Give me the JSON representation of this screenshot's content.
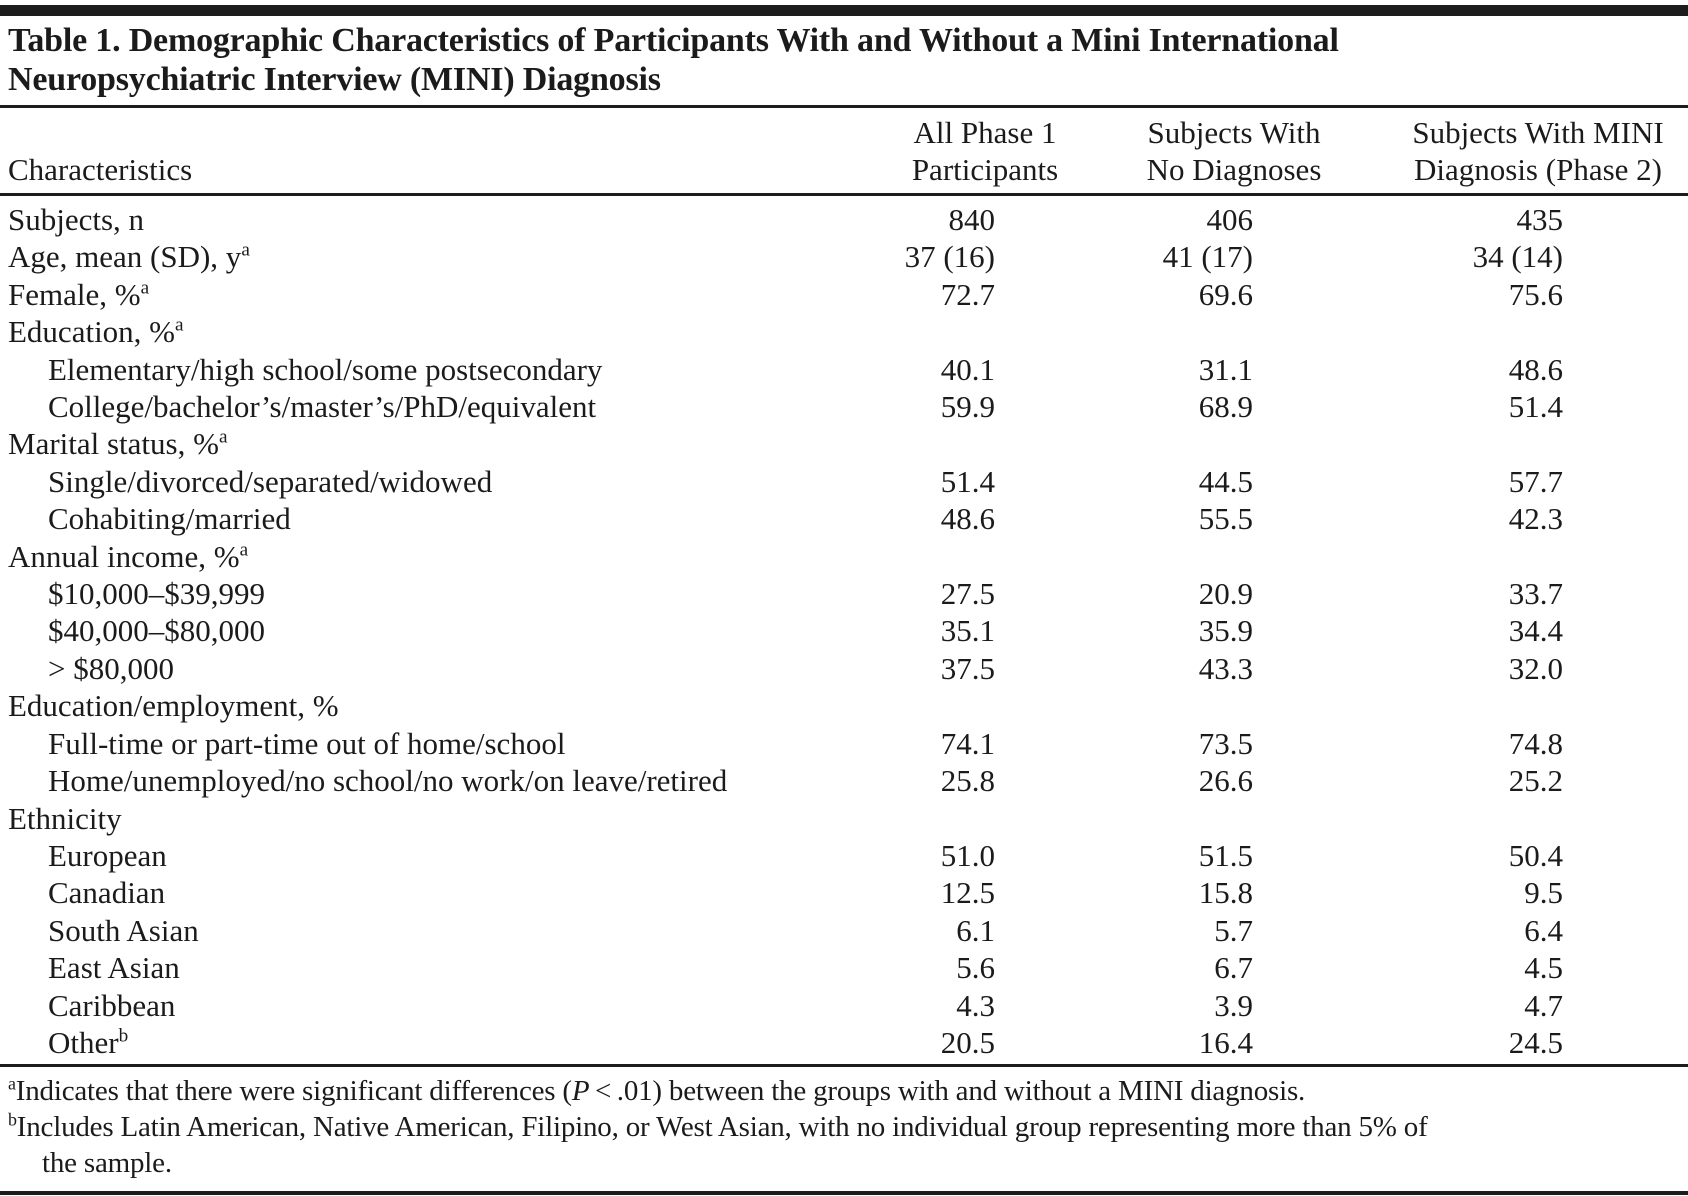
{
  "table": {
    "title_lines": [
      "Table 1. Demographic Characteristics of Participants With and Without a Mini International",
      "Neuropsychiatric Interview (MINI) Diagnosis"
    ],
    "columns": [
      {
        "line1": "Characteristics",
        "line2": ""
      },
      {
        "line1": "All Phase 1",
        "line2": "Participants"
      },
      {
        "line1": "Subjects With",
        "line2": "No Diagnoses"
      },
      {
        "line1": "Subjects With MINI",
        "line2": "Diagnosis (Phase 2)"
      }
    ],
    "rows": [
      {
        "label": "Subjects, n",
        "sup": "",
        "indent": 0,
        "values": [
          "840",
          "406",
          "435"
        ]
      },
      {
        "label": "Age, mean (SD), y",
        "sup": "a",
        "indent": 0,
        "values": [
          "37 (16)",
          "41 (17)",
          "34 (14)"
        ]
      },
      {
        "label": "Female, %",
        "sup": "a",
        "indent": 0,
        "values": [
          "72.7",
          "69.6",
          "75.6"
        ]
      },
      {
        "label": "Education, %",
        "sup": "a",
        "indent": 0,
        "values": [
          "",
          "",
          ""
        ]
      },
      {
        "label": "Elementary/high school/some postsecondary",
        "sup": "",
        "indent": 1,
        "values": [
          "40.1",
          "31.1",
          "48.6"
        ]
      },
      {
        "label": "College/bachelor’s/master’s/PhD/equivalent",
        "sup": "",
        "indent": 1,
        "values": [
          "59.9",
          "68.9",
          "51.4"
        ]
      },
      {
        "label": "Marital status, %",
        "sup": "a",
        "indent": 0,
        "values": [
          "",
          "",
          ""
        ]
      },
      {
        "label": "Single/divorced/separated/widowed",
        "sup": "",
        "indent": 1,
        "values": [
          "51.4",
          "44.5",
          "57.7"
        ]
      },
      {
        "label": "Cohabiting/married",
        "sup": "",
        "indent": 1,
        "values": [
          "48.6",
          "55.5",
          "42.3"
        ]
      },
      {
        "label": "Annual income, %",
        "sup": "a",
        "indent": 0,
        "values": [
          "",
          "",
          ""
        ]
      },
      {
        "label": "$10,000–$39,999",
        "sup": "",
        "indent": 1,
        "values": [
          "27.5",
          "20.9",
          "33.7"
        ]
      },
      {
        "label": "$40,000–$80,000",
        "sup": "",
        "indent": 1,
        "values": [
          "35.1",
          "35.9",
          "34.4"
        ]
      },
      {
        "label": "> $80,000",
        "sup": "",
        "indent": 1,
        "values": [
          "37.5",
          "43.3",
          "32.0"
        ]
      },
      {
        "label": "Education/employment, %",
        "sup": "",
        "indent": 0,
        "values": [
          "",
          "",
          ""
        ]
      },
      {
        "label": "Full-time or part-time out of home/school",
        "sup": "",
        "indent": 1,
        "values": [
          "74.1",
          "73.5",
          "74.8"
        ]
      },
      {
        "label": "Home/unemployed/no school/no work/on leave/retired",
        "sup": "",
        "indent": 1,
        "values": [
          "25.8",
          "26.6",
          "25.2"
        ]
      },
      {
        "label": "Ethnicity",
        "sup": "",
        "indent": 0,
        "values": [
          "",
          "",
          ""
        ]
      },
      {
        "label": "European",
        "sup": "",
        "indent": 1,
        "values": [
          "51.0",
          "51.5",
          "50.4"
        ]
      },
      {
        "label": "Canadian",
        "sup": "",
        "indent": 1,
        "values": [
          "12.5",
          "15.8",
          "9.5"
        ]
      },
      {
        "label": "South Asian",
        "sup": "",
        "indent": 1,
        "values": [
          "6.1",
          "5.7",
          "6.4"
        ]
      },
      {
        "label": "East Asian",
        "sup": "",
        "indent": 1,
        "values": [
          "5.6",
          "6.7",
          "4.5"
        ]
      },
      {
        "label": "Caribbean",
        "sup": "",
        "indent": 1,
        "values": [
          "4.3",
          "3.9",
          "4.7"
        ]
      },
      {
        "label": "Other",
        "sup": "b",
        "indent": 1,
        "values": [
          "20.5",
          "16.4",
          "24.5"
        ]
      }
    ],
    "footnotes": {
      "a": {
        "marker": "a",
        "pre": "Indicates that there were significant differences (",
        "italic": "P",
        "post": " < .01) between the groups with and without a MINI diagnosis."
      },
      "b": {
        "marker": "b",
        "line1": "Includes Latin American, Native American, Filipino, or West Asian, with no individual group representing more than 5% of",
        "line2": "the sample."
      }
    },
    "colors": {
      "text": "#1b1b1b",
      "rule": "#1c1c1c"
    }
  }
}
